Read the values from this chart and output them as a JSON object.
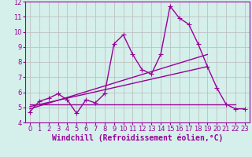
{
  "xlabel": "Windchill (Refroidissement éolien,°C)",
  "background_color": "#d5efeb",
  "grid_color": "#bbbbbb",
  "line_color": "#990099",
  "xlim": [
    -0.5,
    23.5
  ],
  "ylim": [
    4,
    12
  ],
  "xticks": [
    0,
    1,
    2,
    3,
    4,
    5,
    6,
    7,
    8,
    9,
    10,
    11,
    12,
    13,
    14,
    15,
    16,
    17,
    18,
    19,
    20,
    21,
    22,
    23
  ],
  "yticks": [
    4,
    5,
    6,
    7,
    8,
    9,
    10,
    11,
    12
  ],
  "series1_x": [
    0,
    1,
    2,
    3,
    4,
    5,
    6,
    7,
    8,
    9,
    10,
    11,
    12,
    13,
    14,
    15,
    16,
    17,
    18,
    19,
    20,
    21,
    22,
    23
  ],
  "series1_y": [
    4.7,
    5.4,
    5.6,
    5.9,
    5.5,
    4.6,
    5.5,
    5.3,
    5.9,
    9.2,
    9.8,
    8.5,
    7.5,
    7.2,
    8.5,
    11.7,
    10.9,
    10.5,
    9.2,
    7.7,
    6.3,
    5.2,
    4.9,
    4.9
  ],
  "series2_x": [
    0,
    19
  ],
  "series2_y": [
    4.9,
    8.5
  ],
  "series3_x": [
    0,
    19
  ],
  "series3_y": [
    5.05,
    7.7
  ],
  "series4_x": [
    0,
    22
  ],
  "series4_y": [
    5.2,
    5.2
  ],
  "markersize": 3,
  "linewidth": 1.0,
  "tick_fontsize": 6,
  "xlabel_fontsize": 7
}
